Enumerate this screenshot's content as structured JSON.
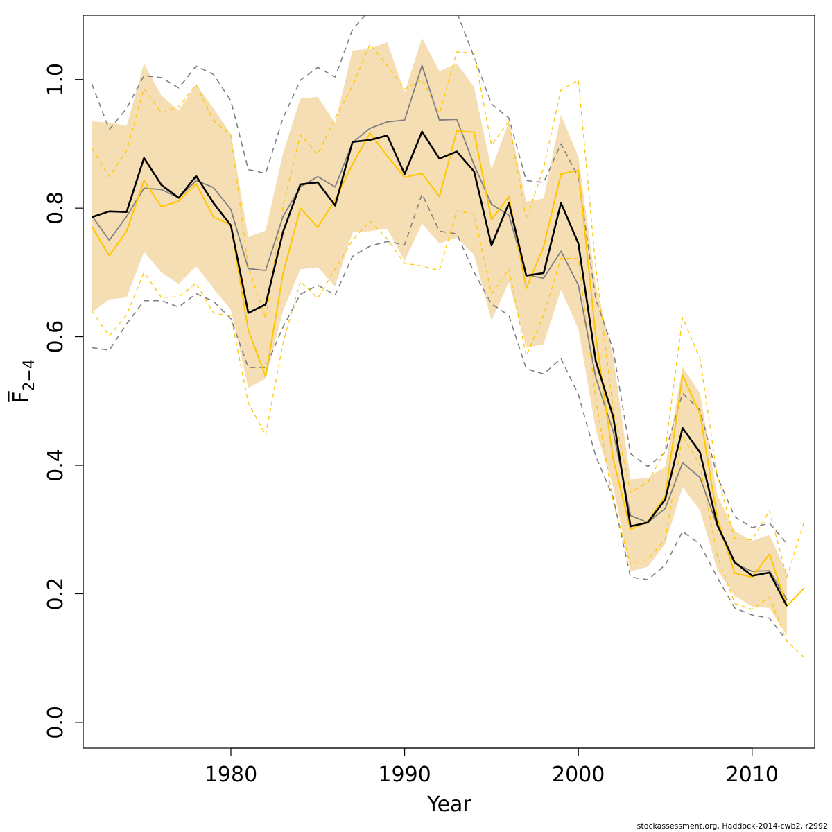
{
  "chart_data": {
    "type": "line",
    "title": "",
    "xlabel": "Year",
    "ylabel": "F̅",
    "ylabel_sub": "2−4",
    "xlim": [
      1971.5,
      2013.6
    ],
    "ylim": [
      -0.04,
      1.1
    ],
    "xticks": [
      "1980",
      "1990",
      "2000",
      "2010"
    ],
    "yticks": [
      "0.0",
      "0.2",
      "0.4",
      "0.6",
      "0.8",
      "1.0"
    ],
    "grid": false,
    "legend": "none",
    "colors": {
      "band": "#f5deb3",
      "main": "#000000",
      "grey": "#7f7f7f",
      "gold": "#ffc600"
    },
    "years": [
      1972,
      1973,
      1974,
      1975,
      1976,
      1977,
      1978,
      1979,
      1980,
      1981,
      1982,
      1983,
      1984,
      1985,
      1986,
      1987,
      1988,
      1989,
      1990,
      1991,
      1992,
      1993,
      1994,
      1995,
      1996,
      1997,
      1998,
      1999,
      2000,
      2001,
      2002,
      2003,
      2004,
      2005,
      2006,
      2007,
      2008,
      2009,
      2010,
      2011,
      2012
    ],
    "band": {
      "upper": [
        0.935,
        0.933,
        0.928,
        1.025,
        0.975,
        0.952,
        0.993,
        0.955,
        0.915,
        0.755,
        0.765,
        0.885,
        0.97,
        0.973,
        0.932,
        1.045,
        1.048,
        1.058,
        0.98,
        1.065,
        1.013,
        1.025,
        0.988,
        0.86,
        0.935,
        0.81,
        0.815,
        0.945,
        0.88,
        0.68,
        0.57,
        0.378,
        0.38,
        0.398,
        0.553,
        0.512,
        0.353,
        0.298,
        0.282,
        0.292,
        0.232
      ],
      "lower": [
        0.638,
        0.658,
        0.661,
        0.732,
        0.7,
        0.682,
        0.71,
        0.675,
        0.642,
        0.52,
        0.535,
        0.64,
        0.705,
        0.708,
        0.678,
        0.762,
        0.764,
        0.768,
        0.718,
        0.776,
        0.745,
        0.754,
        0.727,
        0.625,
        0.685,
        0.583,
        0.588,
        0.673,
        0.612,
        0.455,
        0.367,
        0.235,
        0.242,
        0.278,
        0.366,
        0.33,
        0.237,
        0.197,
        0.18,
        0.178,
        0.135
      ]
    },
    "series": [
      {
        "x": [
          1972,
          1973,
          1974,
          1975,
          1976,
          1977,
          1978,
          1979,
          1980,
          1981,
          1982,
          1983,
          1984,
          1985,
          1986,
          1987,
          1988,
          1989,
          1990,
          1991,
          1992,
          1993,
          1994,
          1995,
          1996,
          1997,
          1998,
          1999,
          2000,
          2001,
          2002,
          2003,
          2004,
          2005,
          2006,
          2007,
          2008,
          2009,
          2010,
          2011,
          2012
        ],
        "values": [
          0.786,
          0.795,
          0.794,
          0.878,
          0.836,
          0.816,
          0.85,
          0.808,
          0.773,
          0.637,
          0.65,
          0.763,
          0.837,
          0.84,
          0.804,
          0.903,
          0.906,
          0.913,
          0.853,
          0.919,
          0.877,
          0.888,
          0.857,
          0.742,
          0.808,
          0.695,
          0.699,
          0.808,
          0.745,
          0.562,
          0.476,
          0.305,
          0.311,
          0.347,
          0.458,
          0.42,
          0.307,
          0.249,
          0.228,
          0.233,
          0.181
        ],
        "color": "#000000",
        "width": 2.6,
        "dash": "none"
      },
      {
        "x": [
          1972,
          1973,
          1974,
          1975,
          1976,
          1977,
          1978,
          1979,
          1980,
          1981,
          1982,
          1983,
          1984,
          1985,
          1986,
          1987,
          1988,
          1989,
          1990,
          1991,
          1992,
          1993,
          1994,
          1995,
          1996,
          1997,
          1998,
          1999,
          2000,
          2001,
          2002,
          2003,
          2004,
          2005,
          2006,
          2007,
          2008,
          2009,
          2010,
          2011,
          2012
        ],
        "values": [
          0.788,
          0.75,
          0.787,
          0.831,
          0.829,
          0.816,
          0.843,
          0.832,
          0.798,
          0.706,
          0.703,
          0.787,
          0.833,
          0.849,
          0.833,
          0.902,
          0.924,
          0.934,
          0.937,
          1.022,
          0.937,
          0.938,
          0.867,
          0.806,
          0.789,
          0.696,
          0.691,
          0.733,
          0.68,
          0.536,
          0.453,
          0.322,
          0.311,
          0.333,
          0.404,
          0.381,
          0.305,
          0.247,
          0.235,
          0.236,
          0.191
        ],
        "color": "#7f7f7f",
        "width": 1.8,
        "dash": "none"
      },
      {
        "x": [
          1972,
          1973,
          1974,
          1975,
          1976,
          1977,
          1978,
          1979,
          1980,
          1981,
          1982,
          1983,
          1984,
          1985,
          1986,
          1987,
          1988,
          1989,
          1990,
          1991,
          1992,
          1993,
          1994,
          1995,
          1996,
          1997,
          1998,
          1999,
          2000,
          2001,
          2002,
          2003,
          2004,
          2005,
          2006,
          2007,
          2008,
          2009,
          2010,
          2011,
          2012
        ],
        "values": [
          0.993,
          0.922,
          0.955,
          1.006,
          1.003,
          0.987,
          1.021,
          1.008,
          0.967,
          0.86,
          0.854,
          0.94,
          0.999,
          1.019,
          1.004,
          1.078,
          1.108,
          1.12,
          1.13,
          1.12,
          1.12,
          1.105,
          1.035,
          0.962,
          0.94,
          0.843,
          0.84,
          0.9,
          0.848,
          0.658,
          0.58,
          0.418,
          0.398,
          0.42,
          0.512,
          0.486,
          0.382,
          0.32,
          0.303,
          0.31,
          0.278
        ],
        "color": "#7f7f7f",
        "width": 1.6,
        "dash": "8 6"
      },
      {
        "x": [
          1972,
          1973,
          1974,
          1975,
          1976,
          1977,
          1978,
          1979,
          1980,
          1981,
          1982,
          1983,
          1984,
          1985,
          1986,
          1987,
          1988,
          1989,
          1990,
          1991,
          1992,
          1993,
          1994,
          1995,
          1996,
          1997,
          1998,
          1999,
          2000,
          2001,
          2002,
          2003,
          2004,
          2005,
          2006,
          2007,
          2008,
          2009,
          2010,
          2011,
          2012
        ],
        "values": [
          0.583,
          0.579,
          0.62,
          0.656,
          0.656,
          0.646,
          0.667,
          0.655,
          0.628,
          0.552,
          0.552,
          0.615,
          0.666,
          0.68,
          0.665,
          0.725,
          0.741,
          0.748,
          0.743,
          0.822,
          0.764,
          0.76,
          0.7,
          0.651,
          0.633,
          0.55,
          0.542,
          0.566,
          0.51,
          0.414,
          0.35,
          0.226,
          0.222,
          0.245,
          0.297,
          0.277,
          0.225,
          0.178,
          0.167,
          0.162,
          0.127
        ],
        "color": "#7f7f7f",
        "width": 1.6,
        "dash": "8 6"
      },
      {
        "x": [
          1972,
          1973,
          1974,
          1975,
          1976,
          1977,
          1978,
          1979,
          1980,
          1981,
          1982,
          1983,
          1984,
          1985,
          1986,
          1987,
          1988,
          1989,
          1990,
          1991,
          1992,
          1993,
          1994,
          1995,
          1996,
          1997,
          1998,
          1999,
          2000,
          2001,
          2002,
          2003,
          2004,
          2005,
          2006,
          2007,
          2008,
          2009,
          2010,
          2011,
          2012,
          2013
        ],
        "values": [
          0.771,
          0.726,
          0.764,
          0.843,
          0.802,
          0.811,
          0.838,
          0.786,
          0.774,
          0.61,
          0.538,
          0.698,
          0.8,
          0.77,
          0.813,
          0.868,
          0.917,
          0.881,
          0.848,
          0.854,
          0.818,
          0.92,
          0.918,
          0.782,
          0.818,
          0.675,
          0.74,
          0.853,
          0.859,
          0.601,
          0.41,
          0.3,
          0.313,
          0.352,
          0.54,
          0.48,
          0.317,
          0.232,
          0.226,
          0.262,
          0.181,
          0.209
        ],
        "color": "#ffc600",
        "width": 2.0,
        "dash": "none"
      },
      {
        "x": [
          1972,
          1973,
          1974,
          1975,
          1976,
          1977,
          1978,
          1979,
          1980,
          1981,
          1982,
          1983,
          1984,
          1985,
          1986,
          1987,
          1988,
          1989,
          1990,
          1991,
          1992,
          1993,
          1994,
          1995,
          1996,
          1997,
          1998,
          1999,
          2000,
          2001,
          2002,
          2003,
          2004,
          2005,
          2006,
          2007,
          2008,
          2009,
          2010,
          2011,
          2012,
          2013
        ],
        "values": [
          0.893,
          0.849,
          0.889,
          0.986,
          0.948,
          0.958,
          0.992,
          0.936,
          0.914,
          0.708,
          0.628,
          0.803,
          0.914,
          0.884,
          0.94,
          0.99,
          1.055,
          1.022,
          0.985,
          1.0,
          0.947,
          1.043,
          1.041,
          0.898,
          0.935,
          0.782,
          0.863,
          0.984,
          0.999,
          0.708,
          0.486,
          0.358,
          0.373,
          0.424,
          0.63,
          0.566,
          0.382,
          0.286,
          0.284,
          0.329,
          0.226,
          0.313
        ],
        "color": "#ffc600",
        "width": 1.3,
        "dash": "6 5"
      },
      {
        "x": [
          1972,
          1973,
          1974,
          1975,
          1976,
          1977,
          1978,
          1979,
          1980,
          1981,
          1982,
          1983,
          1984,
          1985,
          1986,
          1987,
          1988,
          1989,
          1990,
          1991,
          1992,
          1993,
          1994,
          1995,
          1996,
          1997,
          1998,
          1999,
          2000,
          2001,
          2002,
          2003,
          2004,
          2005,
          2006,
          2007,
          2008,
          2009,
          2010,
          2011,
          2012,
          2013
        ],
        "values": [
          0.64,
          0.601,
          0.634,
          0.7,
          0.661,
          0.662,
          0.683,
          0.637,
          0.632,
          0.497,
          0.447,
          0.59,
          0.686,
          0.66,
          0.705,
          0.75,
          0.78,
          0.752,
          0.714,
          0.71,
          0.703,
          0.796,
          0.791,
          0.667,
          0.705,
          0.57,
          0.634,
          0.722,
          0.722,
          0.503,
          0.343,
          0.246,
          0.254,
          0.285,
          0.445,
          0.4,
          0.259,
          0.185,
          0.176,
          0.195,
          0.126,
          0.101
        ],
        "color": "#ffc600",
        "width": 1.3,
        "dash": "6 5"
      }
    ]
  },
  "footer": {
    "credit": "stockassessment.org, Haddock-2014-cwb2, r2992"
  }
}
